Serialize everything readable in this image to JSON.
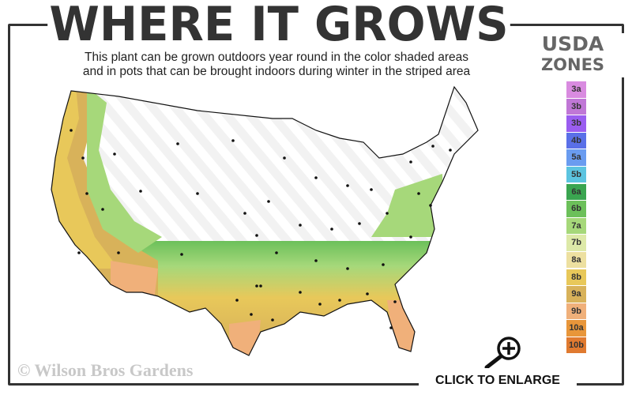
{
  "title": "WHERE IT GROWS",
  "subtitle_line1": "This plant can be grown outdoors year round in the color shaded areas",
  "subtitle_line2": "and in pots that can be brought indoors during winter in the striped area",
  "legend": {
    "title_line1": "USDA",
    "title_line2": "ZONES",
    "zones": [
      {
        "label": "3a",
        "color": "#d98be0"
      },
      {
        "label": "3b",
        "color": "#c077d6"
      },
      {
        "label": "3b",
        "color": "#9a5df0"
      },
      {
        "label": "4b",
        "color": "#5a70e8"
      },
      {
        "label": "5a",
        "color": "#6a9cf0"
      },
      {
        "label": "5b",
        "color": "#5cc4e0"
      },
      {
        "label": "6a",
        "color": "#3aa550"
      },
      {
        "label": "6b",
        "color": "#6cc05a"
      },
      {
        "label": "7a",
        "color": "#a6d87a"
      },
      {
        "label": "7b",
        "color": "#dde9a8"
      },
      {
        "label": "8a",
        "color": "#ede0a0"
      },
      {
        "label": "8b",
        "color": "#e8c85a"
      },
      {
        "label": "9a",
        "color": "#d8b25a"
      },
      {
        "label": "9b",
        "color": "#f0b07a"
      },
      {
        "label": "10a",
        "color": "#e8963a"
      },
      {
        "label": "10b",
        "color": "#e07a30"
      }
    ]
  },
  "copyright": "© Wilson Bros Gardens",
  "enlarge_label": "CLICK TO ENLARGE",
  "icons": {
    "enlarge": "magnifier-plus-icon"
  }
}
